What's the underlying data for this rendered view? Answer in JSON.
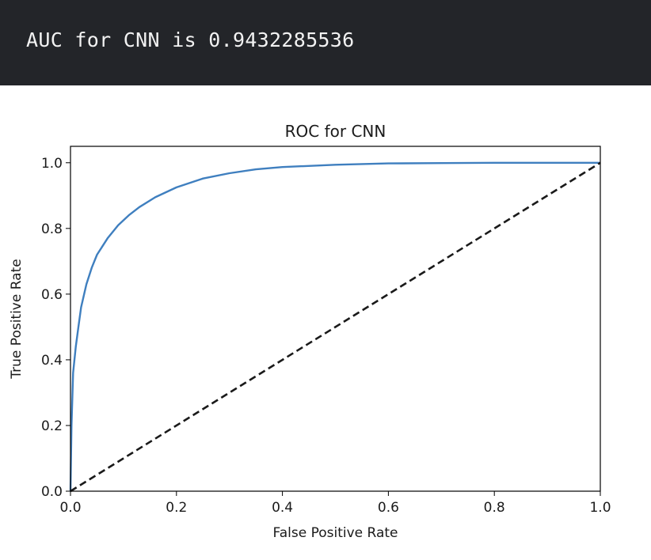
{
  "output": {
    "text": "AUC for CNN is 0.9432285536"
  },
  "chart_data": {
    "type": "line",
    "title": "ROC for CNN",
    "xlabel": "False Positive Rate",
    "ylabel": "True Positive Rate",
    "xlim": [
      0.0,
      1.0
    ],
    "ylim": [
      0.0,
      1.05
    ],
    "xticks": [
      "0.0",
      "0.2",
      "0.4",
      "0.6",
      "0.8",
      "1.0"
    ],
    "yticks": [
      "0.0",
      "0.2",
      "0.4",
      "0.6",
      "0.8",
      "1.0"
    ],
    "grid": false,
    "series": [
      {
        "style": "solid",
        "color": "#3f7fbf",
        "x": [
          0.0,
          0.002,
          0.005,
          0.01,
          0.015,
          0.02,
          0.03,
          0.04,
          0.05,
          0.07,
          0.09,
          0.11,
          0.13,
          0.16,
          0.2,
          0.25,
          0.3,
          0.35,
          0.4,
          0.5,
          0.6,
          0.7,
          0.8,
          0.9,
          1.0
        ],
        "y": [
          0.0,
          0.2,
          0.36,
          0.44,
          0.5,
          0.56,
          0.63,
          0.68,
          0.72,
          0.77,
          0.81,
          0.84,
          0.865,
          0.895,
          0.925,
          0.952,
          0.968,
          0.98,
          0.987,
          0.994,
          0.998,
          0.999,
          1.0,
          1.0,
          1.0
        ]
      },
      {
        "style": "dashed",
        "color": "#1a1a1a",
        "x": [
          0.0,
          1.0
        ],
        "y": [
          0.0,
          1.0
        ]
      }
    ]
  }
}
